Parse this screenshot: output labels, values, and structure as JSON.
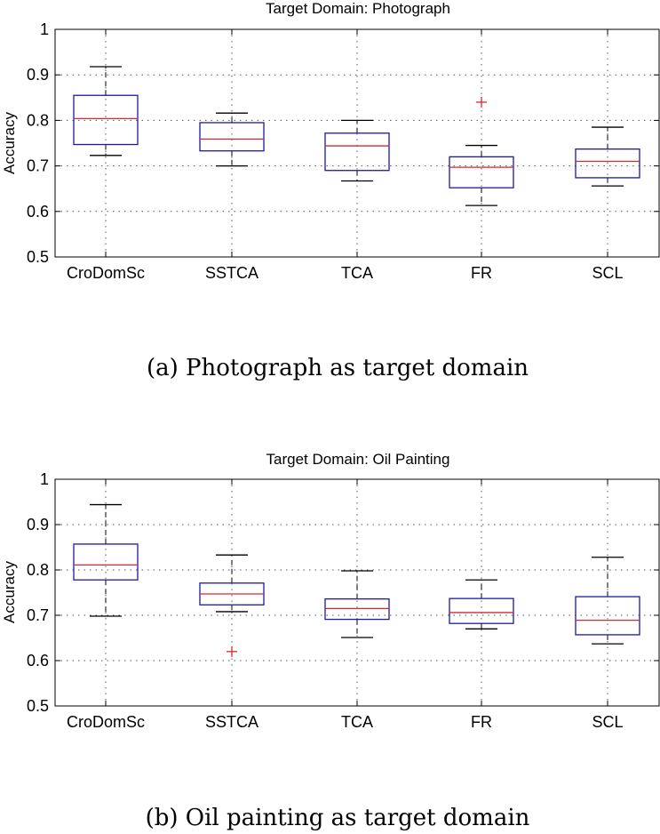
{
  "chart_data": [
    {
      "type": "boxplot",
      "title": "Target Domain: Photograph",
      "ylabel": "Accuracy",
      "xlabel": "",
      "ylim": [
        0.5,
        1
      ],
      "yticks": [
        "0.5",
        "0.6",
        "0.7",
        "0.8",
        "0.9",
        "1"
      ],
      "grid": true,
      "categories": [
        "CroDomSc",
        "SSTCA",
        "TCA",
        "FR",
        "SCL"
      ],
      "boxes": [
        {
          "min": 0.723,
          "q1": 0.747,
          "median": 0.804,
          "q3": 0.855,
          "max": 0.918,
          "outliers": []
        },
        {
          "min": 0.7,
          "q1": 0.733,
          "median": 0.759,
          "q3": 0.795,
          "max": 0.816,
          "outliers": []
        },
        {
          "min": 0.667,
          "q1": 0.69,
          "median": 0.744,
          "q3": 0.772,
          "max": 0.8,
          "outliers": []
        },
        {
          "min": 0.613,
          "q1": 0.652,
          "median": 0.697,
          "q3": 0.72,
          "max": 0.745,
          "outliers": [
            0.84
          ]
        },
        {
          "min": 0.656,
          "q1": 0.674,
          "median": 0.71,
          "q3": 0.737,
          "max": 0.785,
          "outliers": []
        }
      ],
      "caption": "(a) Photograph as target domain"
    },
    {
      "type": "boxplot",
      "title": "Target Domain: Oil Painting",
      "ylabel": "Accuracy",
      "xlabel": "",
      "ylim": [
        0.5,
        1
      ],
      "yticks": [
        "0.5",
        "0.6",
        "0.7",
        "0.8",
        "0.9",
        "1"
      ],
      "grid": true,
      "categories": [
        "CroDomSc",
        "SSTCA",
        "TCA",
        "FR",
        "SCL"
      ],
      "boxes": [
        {
          "min": 0.698,
          "q1": 0.778,
          "median": 0.811,
          "q3": 0.857,
          "max": 0.944,
          "outliers": []
        },
        {
          "min": 0.708,
          "q1": 0.723,
          "median": 0.747,
          "q3": 0.771,
          "max": 0.833,
          "outliers": [
            0.62
          ]
        },
        {
          "min": 0.651,
          "q1": 0.691,
          "median": 0.715,
          "q3": 0.736,
          "max": 0.798,
          "outliers": []
        },
        {
          "min": 0.67,
          "q1": 0.682,
          "median": 0.706,
          "q3": 0.737,
          "max": 0.778,
          "outliers": []
        },
        {
          "min": 0.637,
          "q1": 0.657,
          "median": 0.689,
          "q3": 0.741,
          "max": 0.828,
          "outliers": []
        }
      ],
      "caption": "(b) Oil painting as target domain"
    }
  ],
  "colors": {
    "box": "#1a1aa6",
    "median": "#d42a2a",
    "whisker": "#000000",
    "outlier": "#d42a2a",
    "grid": "#555555"
  }
}
